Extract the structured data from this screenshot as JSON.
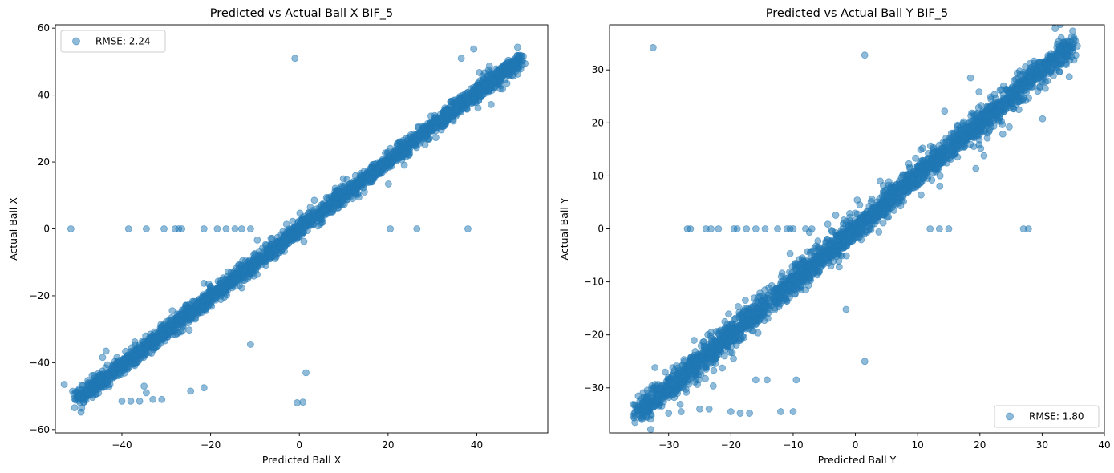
{
  "chart_data": [
    {
      "type": "scatter",
      "title": "Predicted vs Actual Ball X BIF_5",
      "xlabel": "Predicted Ball X",
      "ylabel": "Actual Ball X",
      "xlim": [
        -55,
        56
      ],
      "ylim": [
        -61,
        61
      ],
      "xticks": [
        -40,
        -20,
        0,
        20,
        40
      ],
      "yticks": [
        -60,
        -40,
        -20,
        0,
        20,
        40,
        60
      ],
      "xtick_labels": [
        "−40",
        "−20",
        "0",
        "20",
        "40"
      ],
      "ytick_labels": [
        "−60",
        "−40",
        "−20",
        "0",
        "20",
        "40",
        "60"
      ],
      "grid": false,
      "legend_position": "upper-left",
      "color": "#1f77b4",
      "series": [
        {
          "name": "RMSE: 2.24",
          "trend": {
            "x_start": -50,
            "x_end": 50,
            "y_start": -51,
            "y_end": 51
          },
          "points": [
            [
              -51.5,
              0
            ],
            [
              -38.5,
              0
            ],
            [
              -34.5,
              0
            ],
            [
              -30.5,
              0
            ],
            [
              -28,
              0
            ],
            [
              -27.2,
              0
            ],
            [
              -26.5,
              0
            ],
            [
              -21.5,
              0
            ],
            [
              -18.5,
              0
            ],
            [
              -16.5,
              0
            ],
            [
              -14.5,
              0
            ],
            [
              -13,
              0
            ],
            [
              -11,
              0
            ],
            [
              20.5,
              0
            ],
            [
              26.5,
              0
            ],
            [
              38,
              0
            ],
            [
              -1,
              51
            ],
            [
              36.5,
              51
            ],
            [
              -11,
              -34.5
            ],
            [
              1.5,
              -43
            ],
            [
              -0.5,
              -52
            ],
            [
              0.8,
              -51.8
            ],
            [
              -35,
              -47
            ],
            [
              -34.5,
              -49
            ],
            [
              -33,
              -51
            ],
            [
              -31,
              -51
            ],
            [
              -38,
              -51.5
            ],
            [
              -36,
              -51.5
            ],
            [
              -24.5,
              -48.5
            ],
            [
              -21.5,
              -47.5
            ],
            [
              -40,
              -51.5
            ],
            [
              -53,
              -46.5
            ]
          ]
        }
      ]
    },
    {
      "type": "scatter",
      "title": "Predicted vs Actual Ball Y BIF_5",
      "xlabel": "Predicted Ball Y",
      "ylabel": "Actual Ball Y",
      "xlim": [
        -39.5,
        40
      ],
      "ylim": [
        -38.5,
        38.5
      ],
      "xticks": [
        -30,
        -20,
        -10,
        0,
        10,
        20,
        30,
        40
      ],
      "yticks": [
        -30,
        -20,
        -10,
        0,
        10,
        20,
        30
      ],
      "xtick_labels": [
        "−30",
        "−20",
        "−10",
        "0",
        "10",
        "20",
        "30",
        "40"
      ],
      "ytick_labels": [
        "−30",
        "−20",
        "−10",
        "0",
        "10",
        "20",
        "30"
      ],
      "grid": false,
      "legend_position": "lower-right",
      "color": "#1f77b4",
      "series": [
        {
          "name": "RMSE: 1.80",
          "trend": {
            "x_start": -35,
            "x_end": 35,
            "y_start": -35,
            "y_end": 35
          },
          "points": [
            [
              -27,
              0
            ],
            [
              -26.5,
              0
            ],
            [
              -24,
              0
            ],
            [
              -23.2,
              0
            ],
            [
              -22,
              0
            ],
            [
              -19.5,
              0
            ],
            [
              -19,
              0
            ],
            [
              -17.5,
              0
            ],
            [
              -16,
              0
            ],
            [
              -14.5,
              0
            ],
            [
              -12.5,
              0
            ],
            [
              -11,
              0
            ],
            [
              -10.5,
              0
            ],
            [
              -10,
              0
            ],
            [
              -8,
              0
            ],
            [
              -7,
              0
            ],
            [
              12,
              0
            ],
            [
              13.5,
              0
            ],
            [
              15,
              0
            ],
            [
              27,
              0
            ],
            [
              27.8,
              0
            ],
            [
              -32.5,
              34.2
            ],
            [
              1.5,
              32.8
            ],
            [
              -1.5,
              -15.2
            ],
            [
              1.5,
              -25
            ],
            [
              -16,
              -28.5
            ],
            [
              -14.2,
              -28.5
            ],
            [
              -9.5,
              -28.5
            ],
            [
              -20,
              -34.5
            ],
            [
              -18.5,
              -34.8
            ],
            [
              -17,
              -34.8
            ],
            [
              -12,
              -34.5
            ],
            [
              -10,
              -34.5
            ],
            [
              -25,
              -34
            ],
            [
              -23.5,
              -34
            ],
            [
              -28,
              -34.5
            ],
            [
              -30,
              -34.8
            ],
            [
              18.5,
              28.5
            ]
          ]
        }
      ]
    }
  ]
}
